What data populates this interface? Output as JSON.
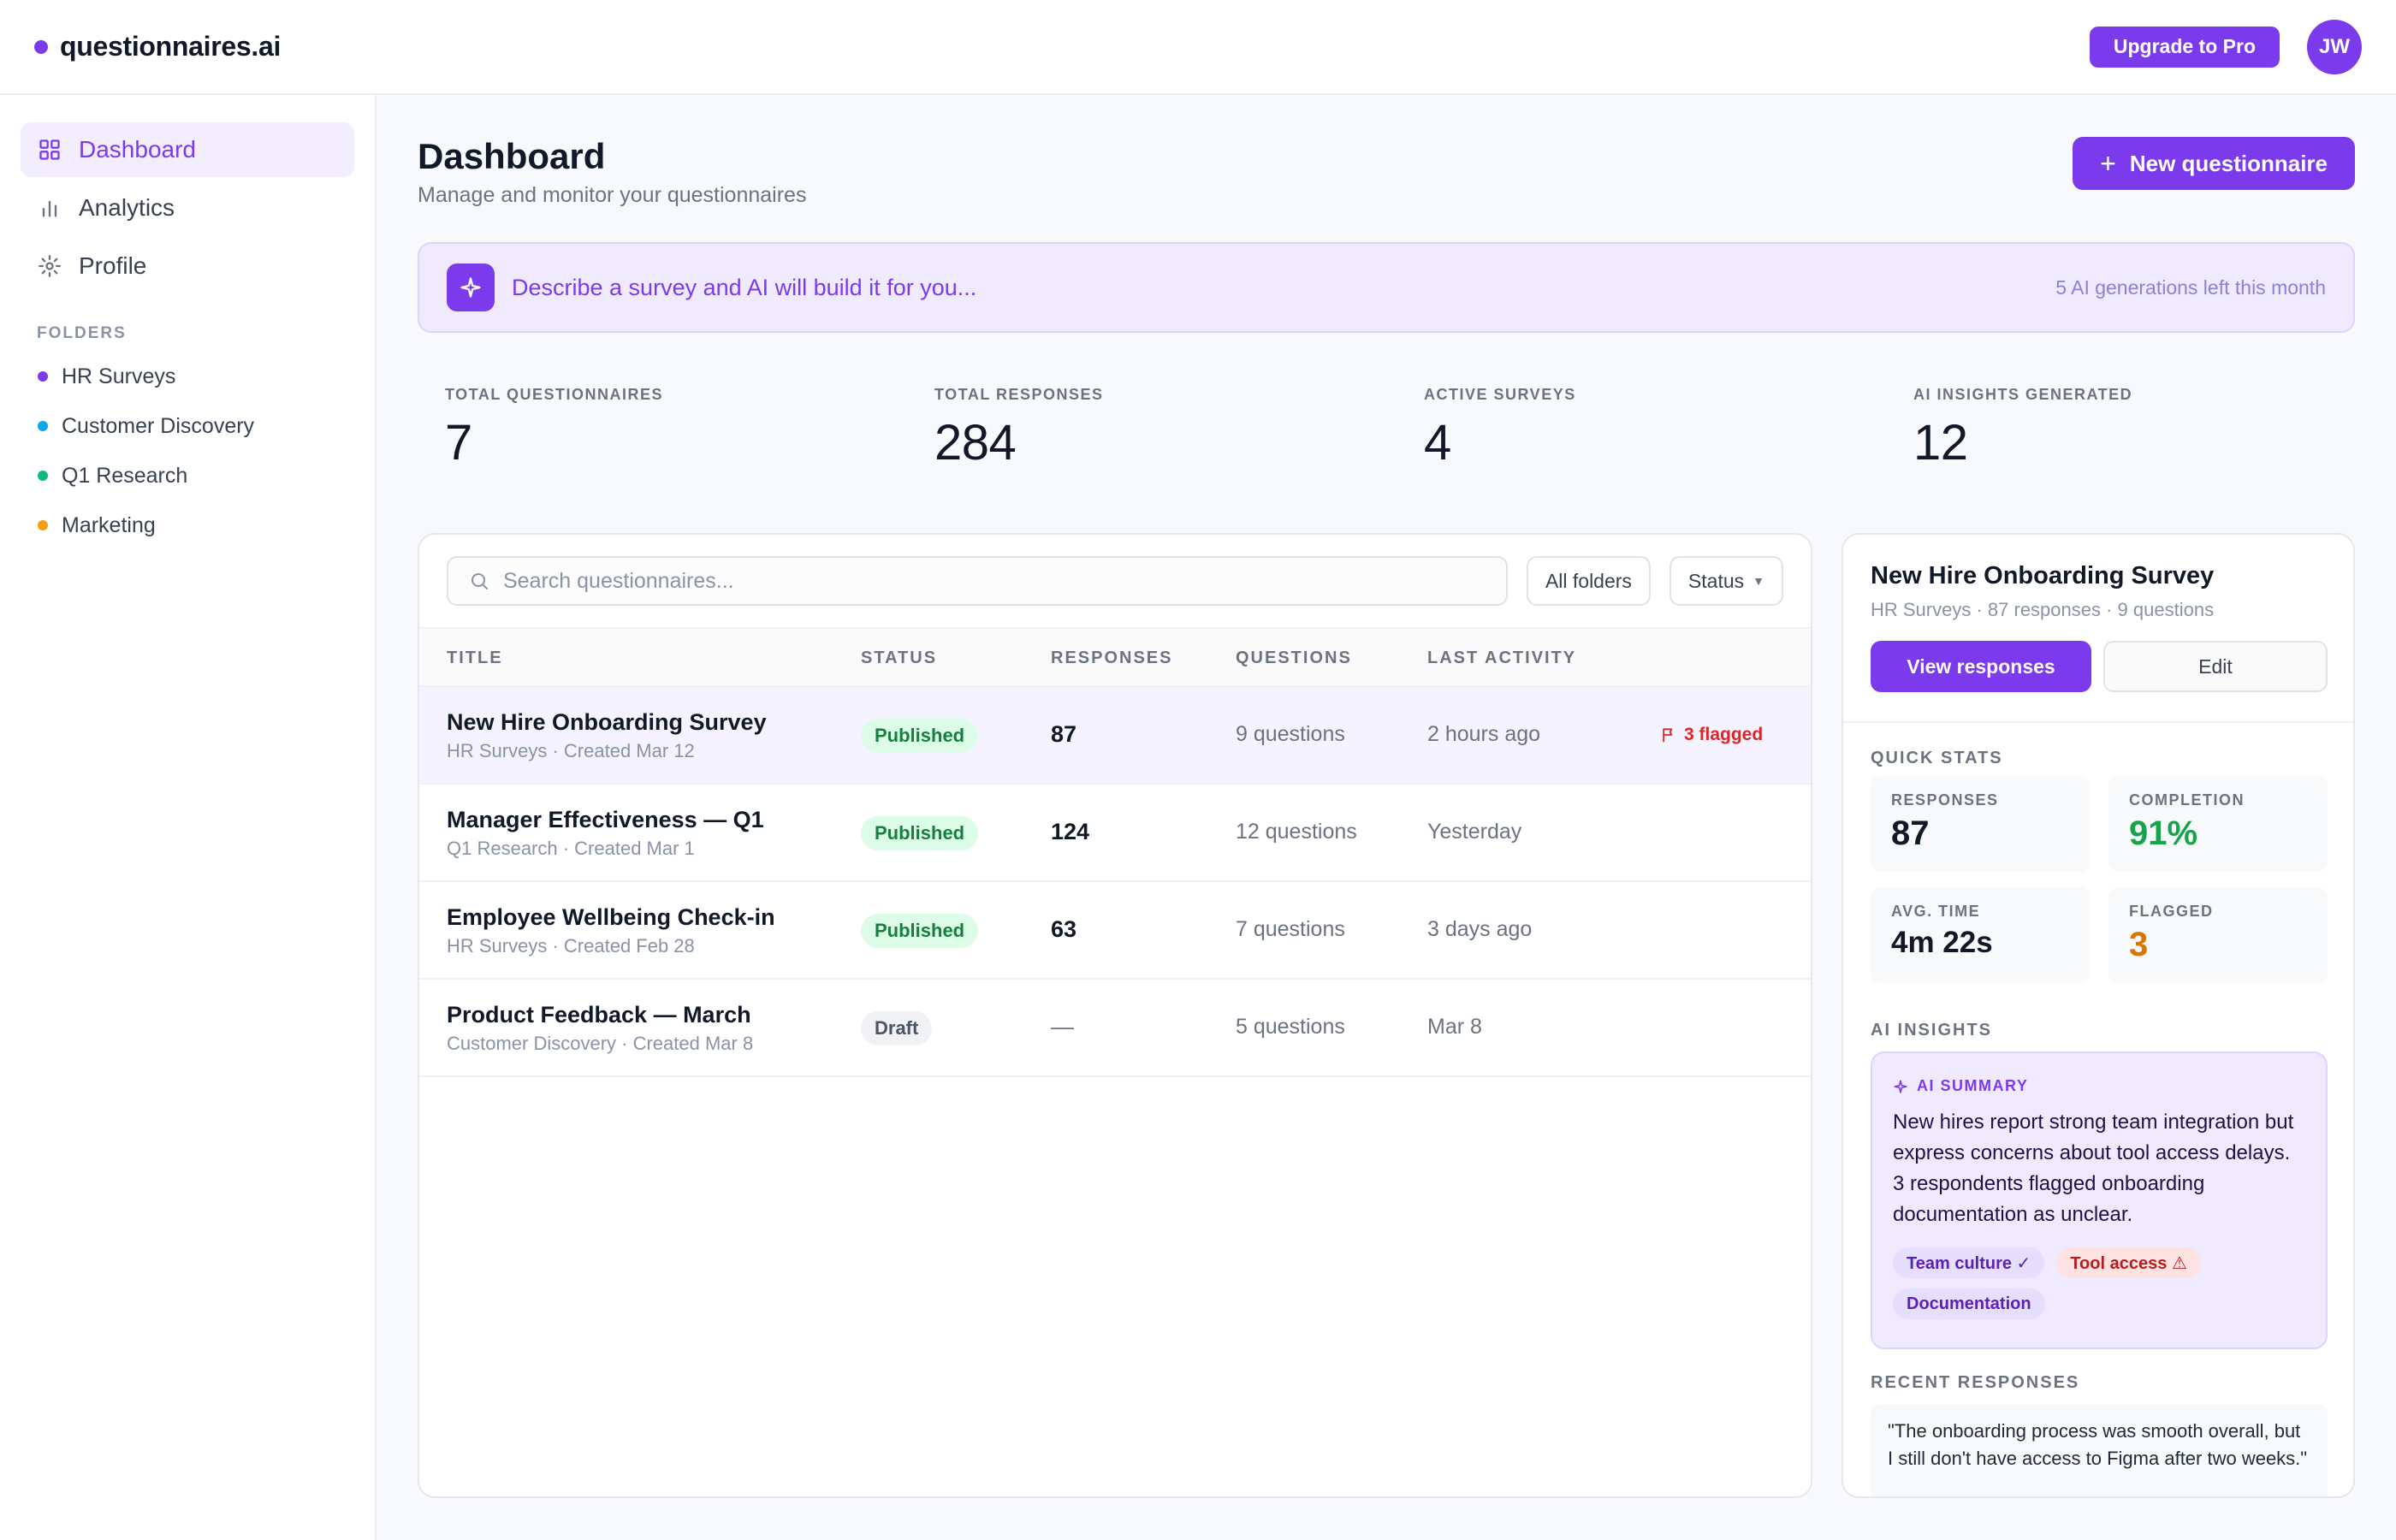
{
  "app": {
    "name": "questionnaires.ai",
    "upgrade_label": "Upgrade to Pro",
    "avatar_initials": "JW",
    "accent_color": "#7c3aed"
  },
  "sidebar": {
    "nav": [
      {
        "label": "Dashboard",
        "icon": "grid-icon",
        "active": true
      },
      {
        "label": "Analytics",
        "icon": "bar-chart-icon",
        "active": false
      },
      {
        "label": "Profile",
        "icon": "gear-icon",
        "active": false
      }
    ],
    "folders_label": "FOLDERS",
    "folders": [
      {
        "label": "HR Surveys",
        "color": "#7c3aed"
      },
      {
        "label": "Customer Discovery",
        "color": "#0ea5e9"
      },
      {
        "label": "Q1 Research",
        "color": "#10b981"
      },
      {
        "label": "Marketing",
        "color": "#f59e0b"
      }
    ]
  },
  "header": {
    "title": "Dashboard",
    "subtitle": "Manage and monitor your questionnaires",
    "new_button": "New questionnaire"
  },
  "ai_bar": {
    "prompt": "Describe a survey and AI will build it for you...",
    "remaining": "5 AI generations left this month"
  },
  "stats": [
    {
      "label": "TOTAL QUESTIONNAIRES",
      "value": "7"
    },
    {
      "label": "TOTAL RESPONSES",
      "value": "284"
    },
    {
      "label": "ACTIVE SURVEYS",
      "value": "4"
    },
    {
      "label": "AI INSIGHTS GENERATED",
      "value": "12"
    }
  ],
  "table": {
    "search_placeholder": "Search questionnaires...",
    "folder_filter": "All folders",
    "status_filter": "Status",
    "columns": [
      "TITLE",
      "STATUS",
      "RESPONSES",
      "QUESTIONS",
      "LAST ACTIVITY"
    ],
    "rows": [
      {
        "title": "New Hire Onboarding Survey",
        "meta": "HR Surveys · Created Mar 12",
        "status": "Published",
        "responses": "87",
        "questions": "9 questions",
        "last": "2 hours ago",
        "flag": "3 flagged"
      },
      {
        "title": "Manager Effectiveness — Q1",
        "meta": "Q1 Research · Created Mar 1",
        "status": "Published",
        "responses": "124",
        "questions": "12 questions",
        "last": "Yesterday",
        "flag": ""
      },
      {
        "title": "Employee Wellbeing Check-in",
        "meta": "HR Surveys · Created Feb 28",
        "status": "Published",
        "responses": "63",
        "questions": "7 questions",
        "last": "3 days ago",
        "flag": ""
      },
      {
        "title": "Product Feedback — March",
        "meta": "Customer Discovery · Created Mar 8",
        "status": "Draft",
        "responses": "—",
        "questions": "5 questions",
        "last": "Mar 8",
        "flag": ""
      }
    ]
  },
  "detail": {
    "title": "New Hire Onboarding Survey",
    "subtitle": "HR Surveys · 87 responses · 9 questions",
    "view_label": "View responses",
    "edit_label": "Edit",
    "quick_stats_label": "QUICK STATS",
    "quick_stats": [
      {
        "label": "RESPONSES",
        "value": "87"
      },
      {
        "label": "COMPLETION",
        "value": "91%"
      },
      {
        "label": "AVG. TIME",
        "value": "4m 22s"
      },
      {
        "label": "FLAGGED",
        "value": "3"
      }
    ],
    "ai_insights_label": "AI INSIGHTS",
    "ai_summary_label": "AI SUMMARY",
    "ai_summary": "New hires report strong team integration but express concerns about tool access delays. 3 respondents flagged onboarding documentation as unclear.",
    "tags": [
      "Team culture ✓",
      "Tool access ⚠",
      "Documentation"
    ],
    "recent_label": "RECENT RESPONSES",
    "recent_quote": "\"The onboarding process was smooth overall, but I still don't have access to Figma after two weeks.\""
  }
}
